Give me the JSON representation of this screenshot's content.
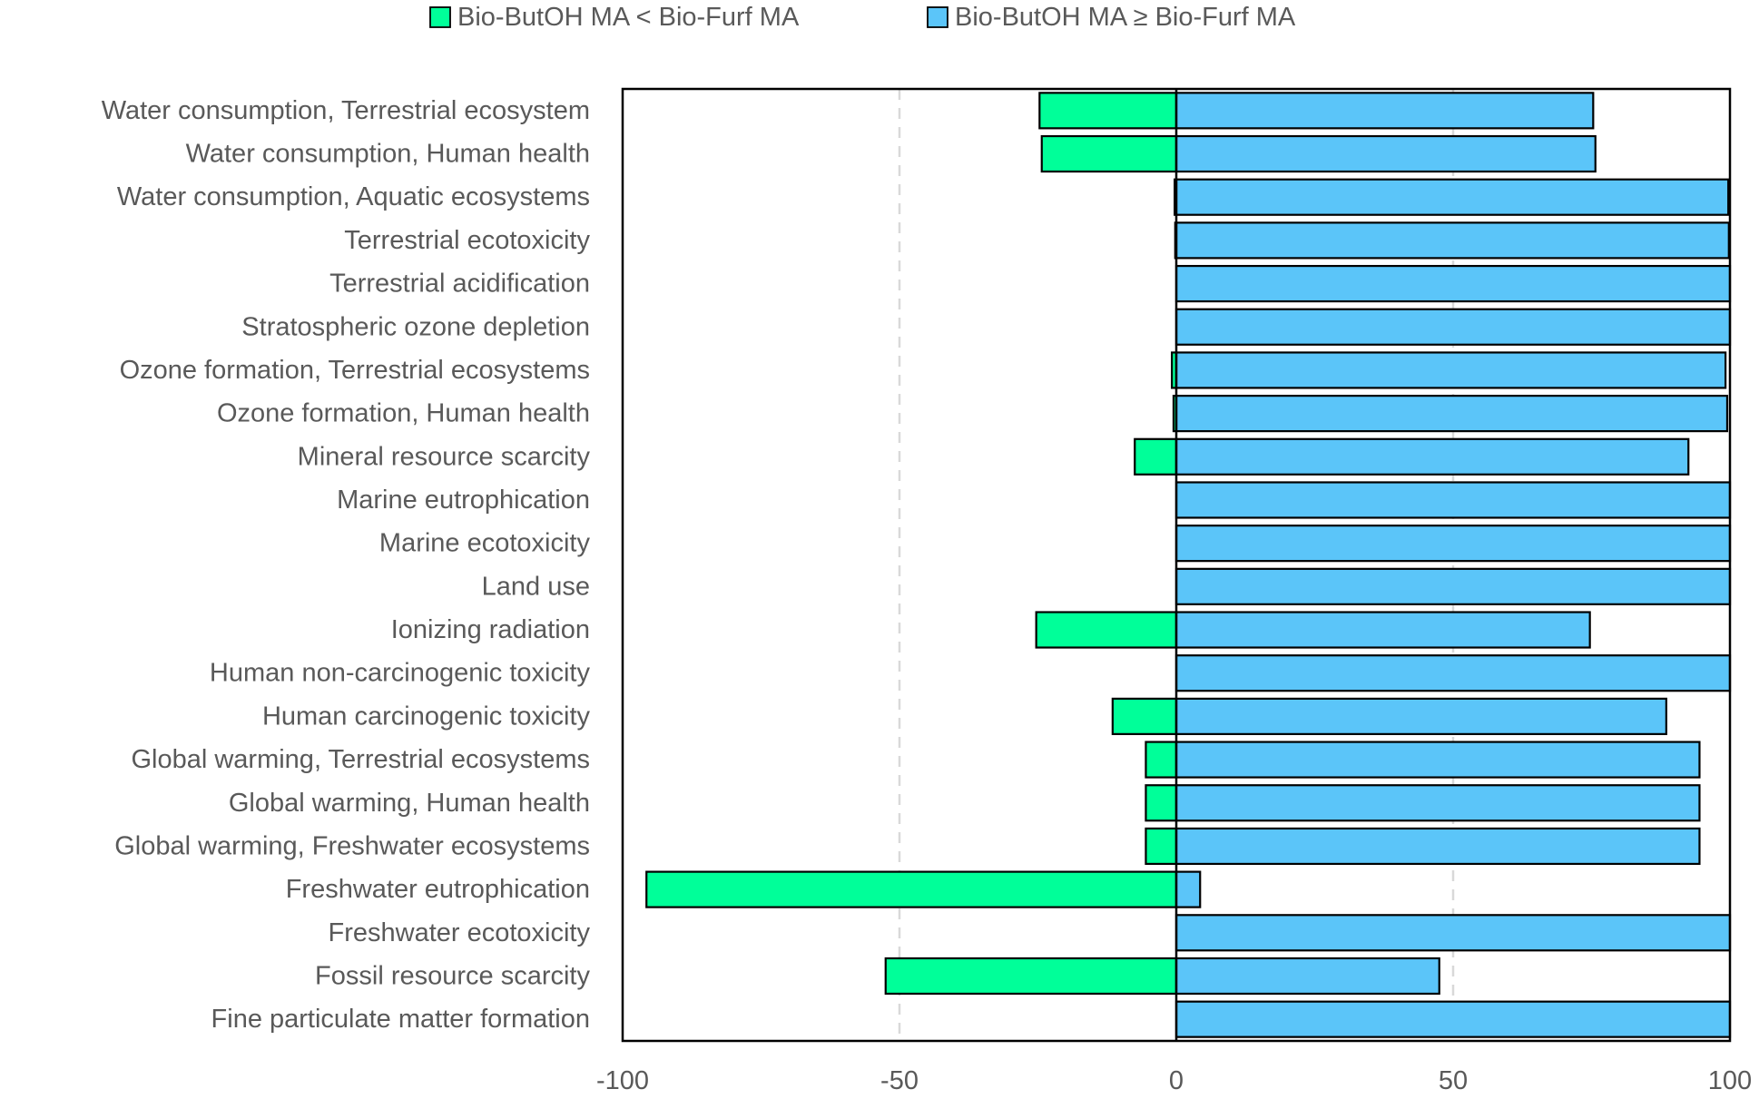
{
  "chart_data": {
    "type": "bar",
    "orientation": "horizontal",
    "stacked": "diverging",
    "title": "",
    "xlabel": "",
    "ylabel": "",
    "xlim": [
      -100,
      100
    ],
    "xticks": [
      -100,
      -50,
      0,
      50,
      100
    ],
    "grid": "vertical dashed at -50 and 50",
    "legend_position": "top",
    "categories": [
      "Water consumption, Terrestrial ecosystem",
      "Water consumption, Human health",
      "Water consumption, Aquatic ecosystems",
      "Terrestrial ecotoxicity",
      "Terrestrial acidification",
      "Stratospheric ozone depletion",
      "Ozone formation, Terrestrial ecosystems",
      "Ozone formation, Human health",
      "Mineral resource scarcity",
      "Marine eutrophication",
      "Marine ecotoxicity",
      "Land use",
      "Ionizing radiation",
      "Human non-carcinogenic toxicity",
      "Human carcinogenic toxicity",
      "Global warming, Terrestrial ecosystems",
      "Global warming, Human health",
      "Global warming, Freshwater ecosystems",
      "Freshwater eutrophication",
      "Freshwater ecotoxicity",
      "Fossil resource scarcity",
      "Fine particulate matter formation"
    ],
    "series": [
      {
        "name": "Bio-ButOH MA < Bio-Furf MA",
        "color": "#00ff99",
        "values": [
          -24.7,
          -24.3,
          -0.3,
          -0.2,
          0,
          0,
          -0.8,
          -0.5,
          -7.5,
          0,
          0,
          0,
          -25.3,
          0,
          -11.5,
          -5.5,
          -5.5,
          -5.5,
          -95.7,
          0,
          -52.5,
          0
        ]
      },
      {
        "name": "Bio-ButOH MA ≥ Bio-Furf MA",
        "color": "#5bc5f9",
        "values": [
          75.3,
          75.7,
          99.7,
          99.8,
          100,
          100,
          99.2,
          99.5,
          92.5,
          100,
          100,
          100,
          74.7,
          100,
          88.5,
          94.5,
          94.5,
          94.5,
          4.3,
          100,
          47.5,
          100
        ]
      }
    ]
  }
}
